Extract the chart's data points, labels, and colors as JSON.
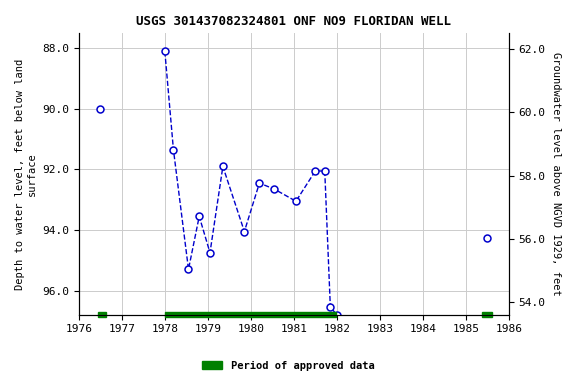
{
  "title": "USGS 301437082324801 ONF NO9 FLORIDAN WELL",
  "ylabel_left": "Depth to water level, feet below land\nsurface",
  "ylabel_right": "Groundwater level above NGVD 1929, feet",
  "xlim": [
    1976,
    1986
  ],
  "ylim_left": [
    96.8,
    87.5
  ],
  "ylim_right": [
    53.6,
    62.5
  ],
  "xticks": [
    1976,
    1977,
    1978,
    1979,
    1980,
    1981,
    1982,
    1983,
    1984,
    1985,
    1986
  ],
  "yticks_left": [
    88.0,
    90.0,
    92.0,
    94.0,
    96.0
  ],
  "yticks_right": [
    54.0,
    56.0,
    58.0,
    60.0,
    62.0
  ],
  "segment1_x": [
    1976.5
  ],
  "segment1_y": [
    90.0
  ],
  "segment2_x": [
    1978.0,
    1978.2,
    1978.55,
    1978.8,
    1979.05,
    1979.35,
    1979.85,
    1980.2,
    1980.55,
    1981.05,
    1981.5,
    1981.72,
    1981.85,
    1982.0
  ],
  "segment2_y": [
    88.1,
    91.35,
    95.3,
    93.55,
    94.75,
    91.9,
    94.05,
    92.45,
    92.65,
    93.05,
    92.05,
    92.05,
    96.55,
    96.8
  ],
  "segment3_x": [
    1985.5
  ],
  "segment3_y": [
    94.25
  ],
  "line_color": "#0000cc",
  "marker_color": "#0000cc",
  "marker_facecolor": "white",
  "marker_size": 5,
  "grid_color": "#cccccc",
  "bg_color": "#ffffff",
  "approved_segments": [
    {
      "x_start": 1976.45,
      "x_end": 1976.62,
      "color": "#008000"
    },
    {
      "x_start": 1978.0,
      "x_end": 1981.98,
      "color": "#008000"
    },
    {
      "x_start": 1985.38,
      "x_end": 1985.62,
      "color": "#008000"
    }
  ],
  "legend_label": "Period of approved data",
  "legend_color": "#008000",
  "font_family": "monospace",
  "title_fontsize": 9,
  "axis_label_fontsize": 7.5,
  "tick_fontsize": 8
}
